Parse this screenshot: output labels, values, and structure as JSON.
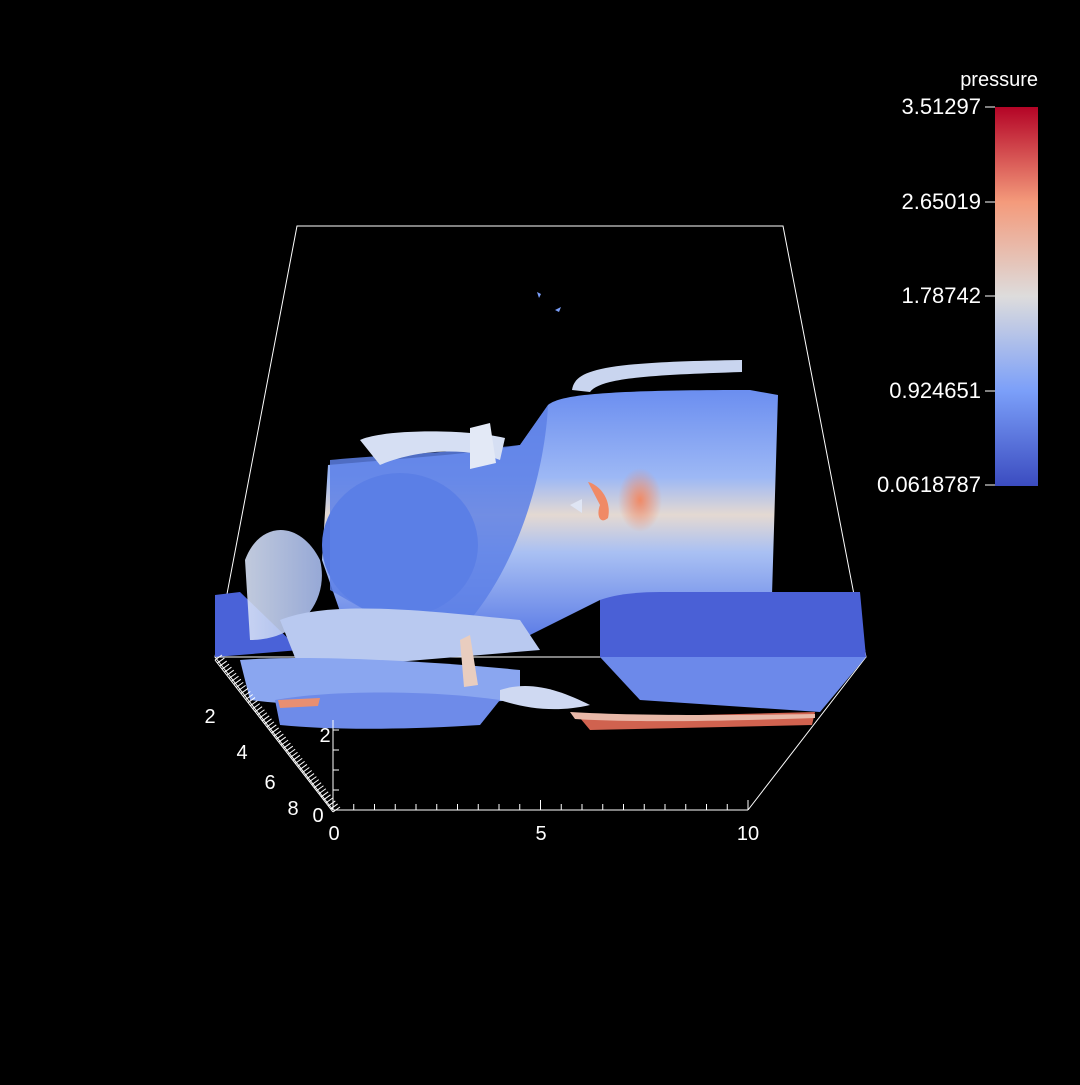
{
  "scalar_bar": {
    "title": "pressure",
    "ticks": [
      "3.51297",
      "2.65019",
      "1.78742",
      "0.924651",
      "0.0618787"
    ],
    "colors": [
      "#b40426",
      "#f49a7b",
      "#dddcdc",
      "#7b9ff9",
      "#3b4cc0"
    ]
  },
  "axes": {
    "x_ticks": [
      "0",
      "5",
      "10"
    ],
    "y_ticks": [
      "2",
      "4",
      "6",
      "8"
    ],
    "z_ticks": [
      "0",
      "2"
    ]
  },
  "background_color": "#000000"
}
